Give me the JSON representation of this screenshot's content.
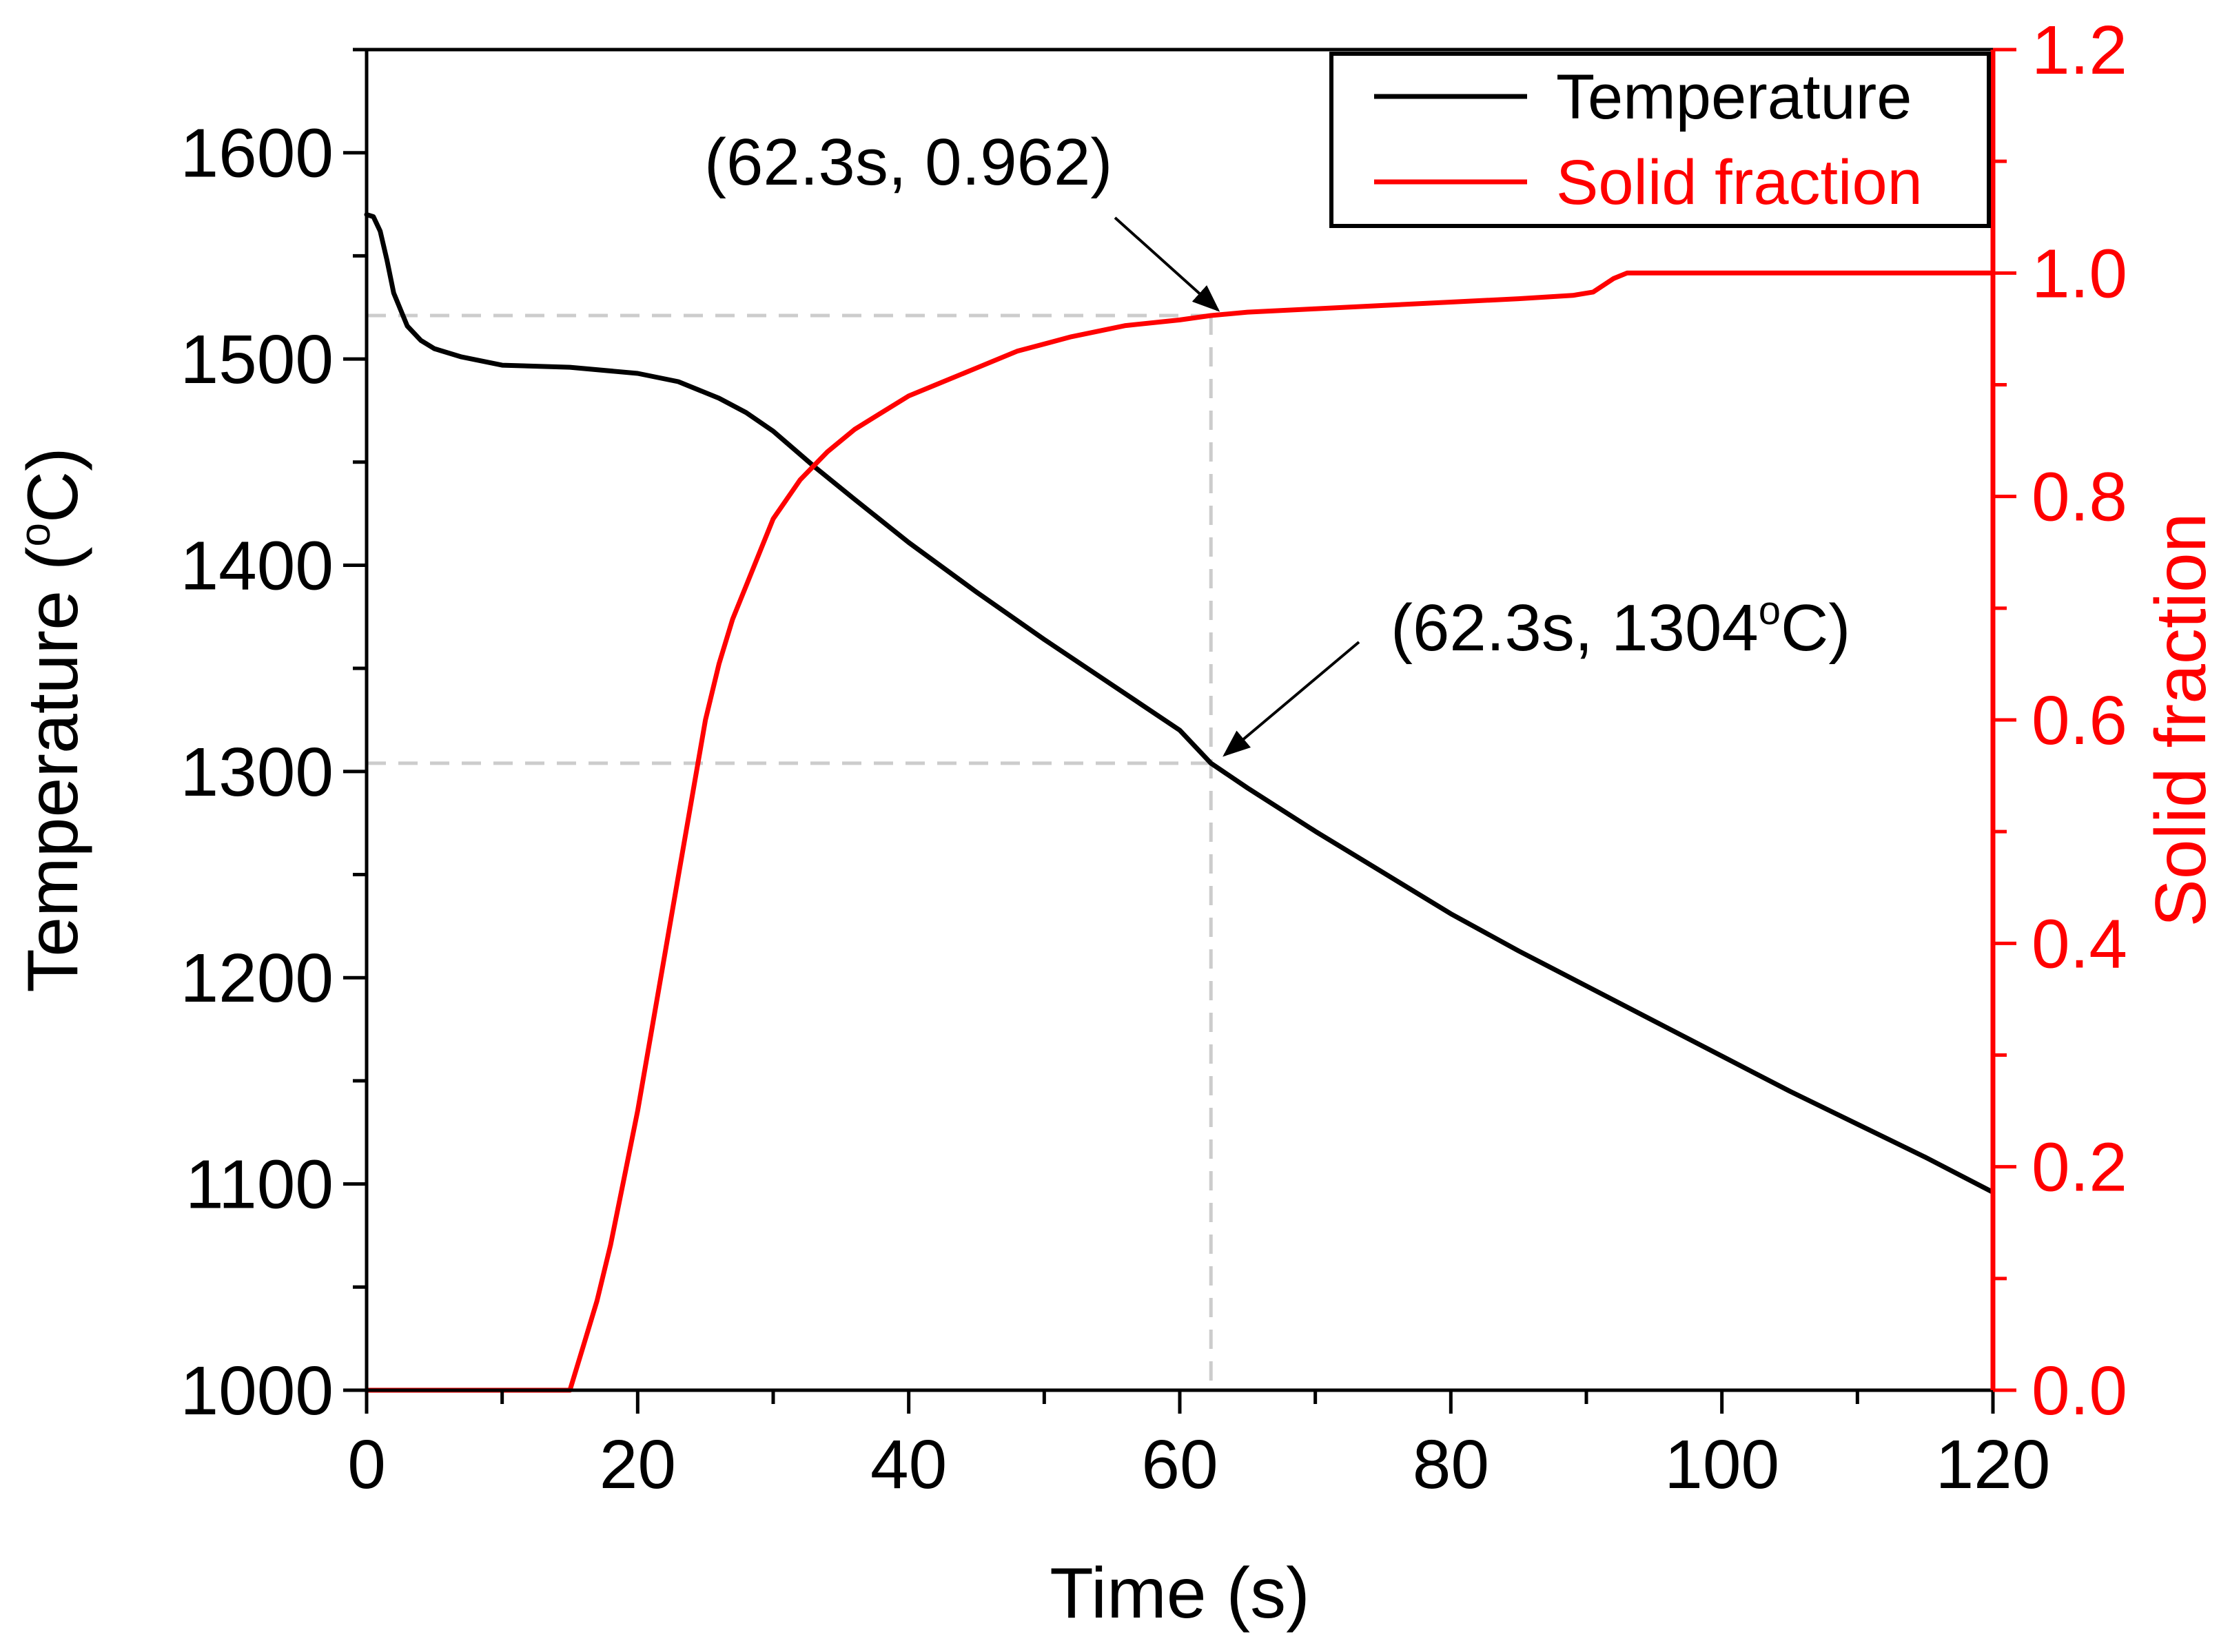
{
  "chart_data": {
    "type": "line",
    "x_axis": {
      "label": "Time (s)",
      "range": [
        0,
        120
      ],
      "major_ticks": [
        0,
        20,
        40,
        60,
        80,
        100,
        120
      ],
      "tick_labels": [
        "0",
        "20",
        "40",
        "60",
        "80",
        "100",
        "120"
      ],
      "minor_step": 10
    },
    "y_axis_left": {
      "label_main": "Temperature (",
      "label_sup": "o",
      "label_end": "C)",
      "range": [
        1000,
        1650
      ],
      "major_ticks": [
        1000,
        1100,
        1200,
        1300,
        1400,
        1500,
        1600
      ],
      "tick_labels": [
        "1000",
        "1100",
        "1200",
        "1300",
        "1400",
        "1500",
        "1600"
      ],
      "minor_step": 50
    },
    "y_axis_right": {
      "label": "Solid fraction",
      "range": [
        0,
        1.2
      ],
      "major_ticks": [
        0,
        0.2,
        0.4,
        0.6,
        0.8,
        1.0,
        1.2
      ],
      "tick_labels": [
        "0.0",
        "0.2",
        "0.4",
        "0.6",
        "0.8",
        "1.0",
        "1.2"
      ],
      "minor_step": 0.1,
      "color": "#ff0000"
    },
    "series": [
      {
        "name": "Temperature",
        "axis": "left",
        "color": "#000000",
        "points": [
          [
            0,
            1570
          ],
          [
            0.5,
            1569
          ],
          [
            1,
            1562
          ],
          [
            1.5,
            1548
          ],
          [
            2,
            1532
          ],
          [
            3,
            1516
          ],
          [
            4,
            1509
          ],
          [
            5,
            1505
          ],
          [
            7,
            1501
          ],
          [
            10,
            1497
          ],
          [
            15,
            1496
          ],
          [
            20,
            1493
          ],
          [
            23,
            1489
          ],
          [
            26,
            1481
          ],
          [
            28,
            1474
          ],
          [
            30,
            1465
          ],
          [
            33,
            1448
          ],
          [
            36,
            1432
          ],
          [
            40,
            1411
          ],
          [
            45,
            1387
          ],
          [
            50,
            1364
          ],
          [
            55,
            1342
          ],
          [
            60,
            1320
          ],
          [
            62.3,
            1304
          ],
          [
            65,
            1292
          ],
          [
            70,
            1271
          ],
          [
            75,
            1251
          ],
          [
            80,
            1231
          ],
          [
            85,
            1213
          ],
          [
            90,
            1196
          ],
          [
            95,
            1179
          ],
          [
            100,
            1162
          ],
          [
            105,
            1145
          ],
          [
            110,
            1129
          ],
          [
            115,
            1113
          ],
          [
            120,
            1096
          ]
        ]
      },
      {
        "name": "Solid fraction",
        "axis": "right",
        "color": "#ff0000",
        "points": [
          [
            0,
            0
          ],
          [
            15,
            0
          ],
          [
            16,
            0.04
          ],
          [
            17,
            0.08
          ],
          [
            18,
            0.13
          ],
          [
            19,
            0.19
          ],
          [
            20,
            0.25
          ],
          [
            21,
            0.32
          ],
          [
            22,
            0.39
          ],
          [
            23,
            0.46
          ],
          [
            24,
            0.53
          ],
          [
            25,
            0.6
          ],
          [
            26,
            0.65
          ],
          [
            27,
            0.69
          ],
          [
            28,
            0.72
          ],
          [
            29,
            0.75
          ],
          [
            30,
            0.78
          ],
          [
            32,
            0.815
          ],
          [
            34,
            0.84
          ],
          [
            36,
            0.86
          ],
          [
            38,
            0.875
          ],
          [
            40,
            0.89
          ],
          [
            42,
            0.9
          ],
          [
            45,
            0.915
          ],
          [
            48,
            0.93
          ],
          [
            52,
            0.943
          ],
          [
            56,
            0.953
          ],
          [
            60,
            0.958
          ],
          [
            62.3,
            0.962
          ],
          [
            65,
            0.965
          ],
          [
            70,
            0.968
          ],
          [
            75,
            0.971
          ],
          [
            80,
            0.974
          ],
          [
            85,
            0.977
          ],
          [
            89,
            0.98
          ],
          [
            90.5,
            0.983
          ],
          [
            92,
            0.995
          ],
          [
            93,
            1.0
          ],
          [
            100,
            1.0
          ],
          [
            110,
            1.0
          ],
          [
            120,
            1.0
          ]
        ]
      }
    ],
    "annotations": [
      {
        "text": "(62.3s, 0.962)",
        "x": 62.3,
        "y": 0.962,
        "axis": "right"
      },
      {
        "text_main": "(62.3s, 1304",
        "text_sup": "o",
        "text_end": "C)",
        "x": 62.3,
        "y": 1304,
        "axis": "left"
      }
    ],
    "reference_lines": {
      "x": 62.3,
      "temperature": 1304,
      "solid_fraction": 0.962,
      "color": "#cccccc"
    },
    "legend": {
      "position": "top-right",
      "entries": [
        {
          "label": "Temperature",
          "color": "#000000"
        },
        {
          "label": "Solid fraction",
          "color": "#ff0000"
        }
      ]
    }
  }
}
